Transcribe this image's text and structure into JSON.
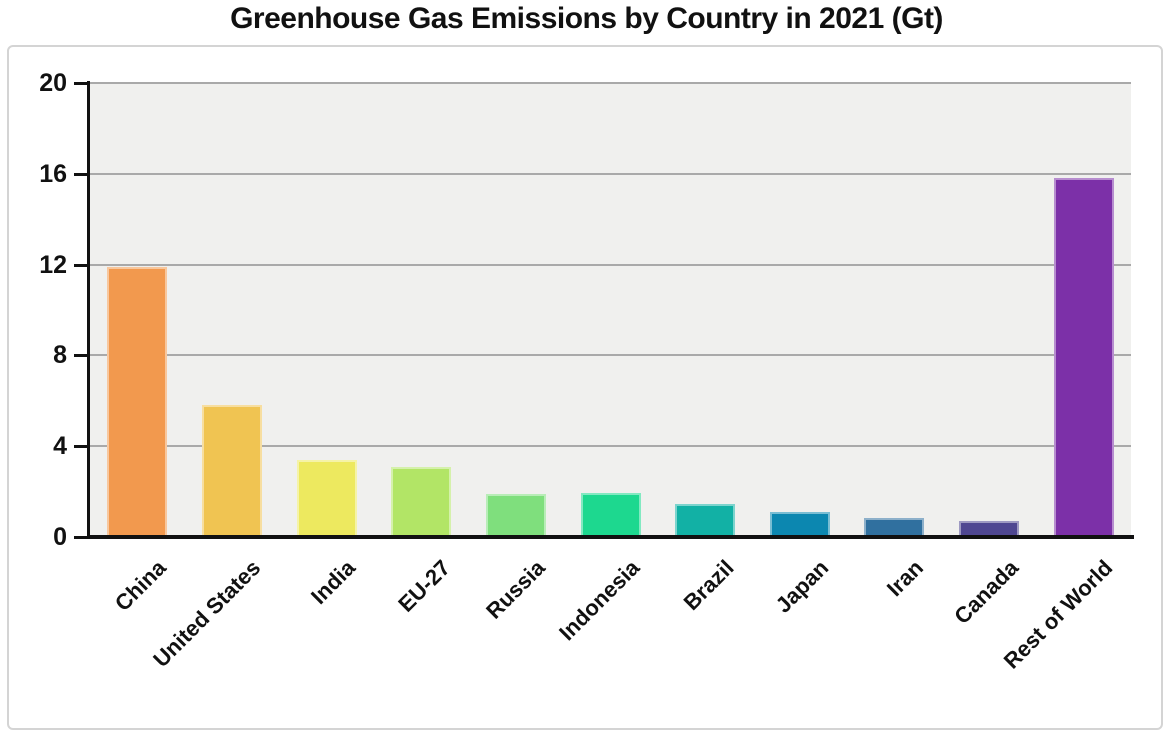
{
  "title": "Greenhouse Gas Emissions by Country in 2021 (Gt)",
  "colors": {
    "page_bg": "#ffffff",
    "panel_border": "#d4d4d4",
    "plot_bg": "#f0f0ee",
    "gridline": "#a9a9a9",
    "axis": "#111111",
    "text": "#111111"
  },
  "chart_data": {
    "type": "bar",
    "title": "Greenhouse Gas Emissions by Country in 2021 (Gt)",
    "categories": [
      "China",
      "United States",
      "India",
      "EU-27",
      "Russia",
      "Indonesia",
      "Brazil",
      "Japan",
      "Iran",
      "Canada",
      "Rest of World"
    ],
    "values": [
      11.9,
      5.8,
      3.4,
      3.1,
      1.9,
      1.95,
      1.45,
      1.1,
      0.85,
      0.7,
      15.8
    ],
    "bar_colors": [
      "#F2994E",
      "#F0C452",
      "#EDE95F",
      "#B2E566",
      "#7FDF7D",
      "#1DD88F",
      "#12B1A5",
      "#0C87B0",
      "#30709F",
      "#4F4791",
      "#7C30A8"
    ],
    "xlabel": "",
    "ylabel": "",
    "ylim": [
      0,
      20
    ],
    "yticks": [
      0,
      4,
      8,
      12,
      16,
      20
    ],
    "grid": true,
    "legend": false,
    "x_tick_rotation_deg": 45
  }
}
